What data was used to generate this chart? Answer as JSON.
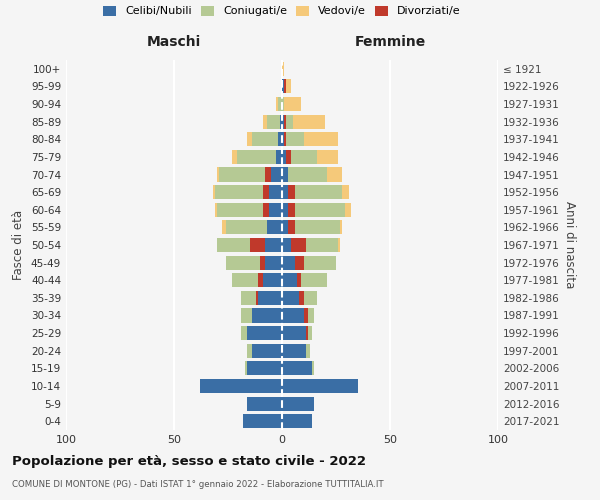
{
  "age_groups": [
    "0-4",
    "5-9",
    "10-14",
    "15-19",
    "20-24",
    "25-29",
    "30-34",
    "35-39",
    "40-44",
    "45-49",
    "50-54",
    "55-59",
    "60-64",
    "65-69",
    "70-74",
    "75-79",
    "80-84",
    "85-89",
    "90-94",
    "95-99",
    "100+"
  ],
  "birth_years": [
    "2017-2021",
    "2012-2016",
    "2007-2011",
    "2002-2006",
    "1997-2001",
    "1992-1996",
    "1987-1991",
    "1982-1986",
    "1977-1981",
    "1972-1976",
    "1967-1971",
    "1962-1966",
    "1957-1961",
    "1952-1956",
    "1947-1951",
    "1942-1946",
    "1937-1941",
    "1932-1936",
    "1927-1931",
    "1922-1926",
    "≤ 1921"
  ],
  "maschi": {
    "celibi": [
      18,
      16,
      38,
      16,
      14,
      16,
      14,
      11,
      9,
      8,
      8,
      7,
      6,
      6,
      5,
      3,
      2,
      1,
      0,
      0,
      0
    ],
    "coniugati": [
      0,
      0,
      0,
      1,
      2,
      3,
      5,
      8,
      14,
      18,
      22,
      19,
      24,
      25,
      24,
      18,
      12,
      6,
      2,
      0,
      0
    ],
    "vedovi": [
      0,
      0,
      0,
      0,
      0,
      0,
      0,
      0,
      0,
      0,
      0,
      2,
      1,
      1,
      1,
      2,
      2,
      2,
      1,
      0,
      0
    ],
    "divorziati": [
      0,
      0,
      0,
      0,
      0,
      0,
      0,
      1,
      2,
      2,
      7,
      0,
      3,
      3,
      3,
      0,
      0,
      0,
      0,
      0,
      0
    ]
  },
  "femmine": {
    "nubili": [
      14,
      15,
      35,
      14,
      11,
      11,
      10,
      8,
      7,
      6,
      4,
      3,
      3,
      3,
      3,
      2,
      1,
      1,
      0,
      1,
      0
    ],
    "coniugate": [
      0,
      0,
      0,
      1,
      2,
      3,
      5,
      8,
      14,
      19,
      22,
      24,
      26,
      25,
      18,
      14,
      9,
      4,
      1,
      0,
      0
    ],
    "vedove": [
      0,
      0,
      0,
      0,
      0,
      0,
      0,
      0,
      0,
      0,
      1,
      1,
      3,
      3,
      7,
      10,
      16,
      15,
      8,
      3,
      1
    ],
    "divorziate": [
      0,
      0,
      0,
      0,
      0,
      1,
      2,
      2,
      2,
      4,
      7,
      3,
      3,
      3,
      0,
      2,
      1,
      1,
      0,
      1,
      0
    ]
  },
  "colors": {
    "celibi": "#3a6ea5",
    "coniugati": "#b5c994",
    "vedovi": "#f5c97a",
    "divorziati": "#c0392b"
  },
  "xlim": 100,
  "title": "Popolazione per età, sesso e stato civile - 2022",
  "subtitle": "COMUNE DI MONTONE (PG) - Dati ISTAT 1° gennaio 2022 - Elaborazione TUTTITALIA.IT",
  "ylabel_left": "Fasce di età",
  "ylabel_right": "Anni di nascita",
  "xlabel_left": "Maschi",
  "xlabel_right": "Femmine",
  "bg_color": "#f5f5f5",
  "grid_color": "#cccccc"
}
